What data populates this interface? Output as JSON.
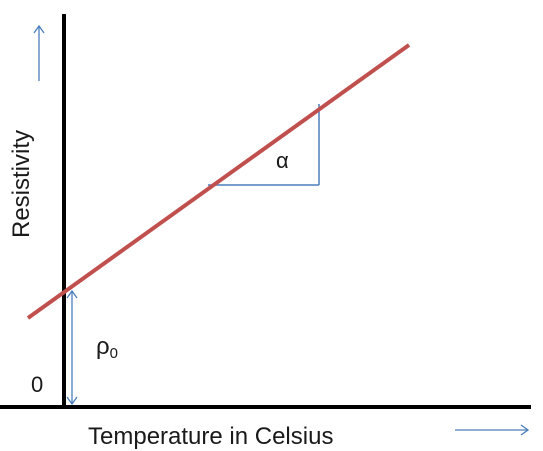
{
  "diagram": {
    "y_axis_label": "Resistivity",
    "x_axis_label": "Temperature in Celsius",
    "origin_label": "0",
    "slope_label": "α",
    "intercept_label": "ρ",
    "intercept_subscript": "0"
  },
  "colors": {
    "axis": "#000000",
    "line": "#c0504d",
    "annotation": "#4a7ebb",
    "text": "#1a1a1a"
  }
}
